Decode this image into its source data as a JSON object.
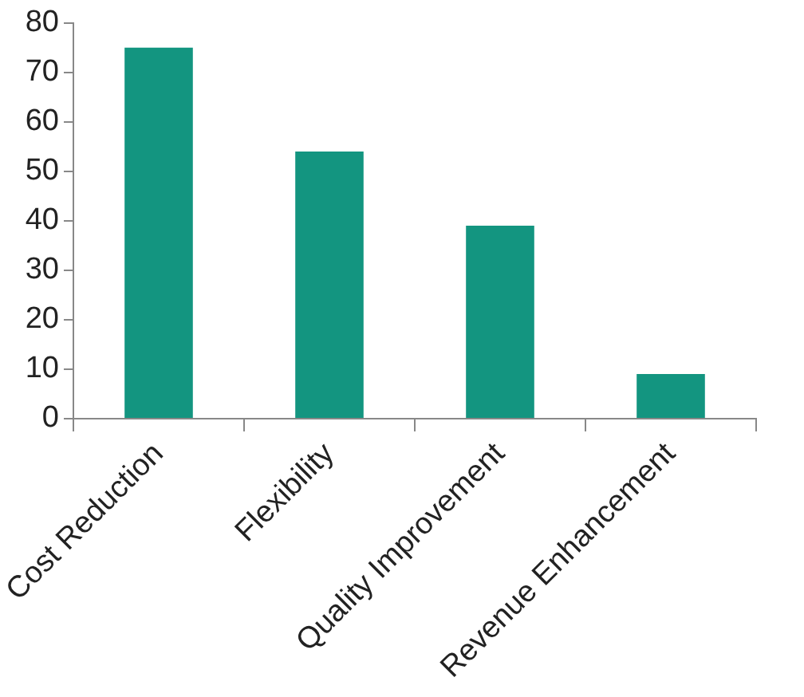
{
  "chart_data": {
    "type": "bar",
    "categories": [
      "Cost Reduction",
      "Flexibility",
      "Quality Improvement",
      "Revenue Enhancement"
    ],
    "values": [
      75,
      54,
      39,
      9
    ],
    "color": "#139580",
    "ylim": [
      0,
      80
    ],
    "yticks": [
      0,
      10,
      20,
      30,
      40,
      50,
      60,
      70,
      80
    ],
    "grid": false,
    "legend": false
  }
}
